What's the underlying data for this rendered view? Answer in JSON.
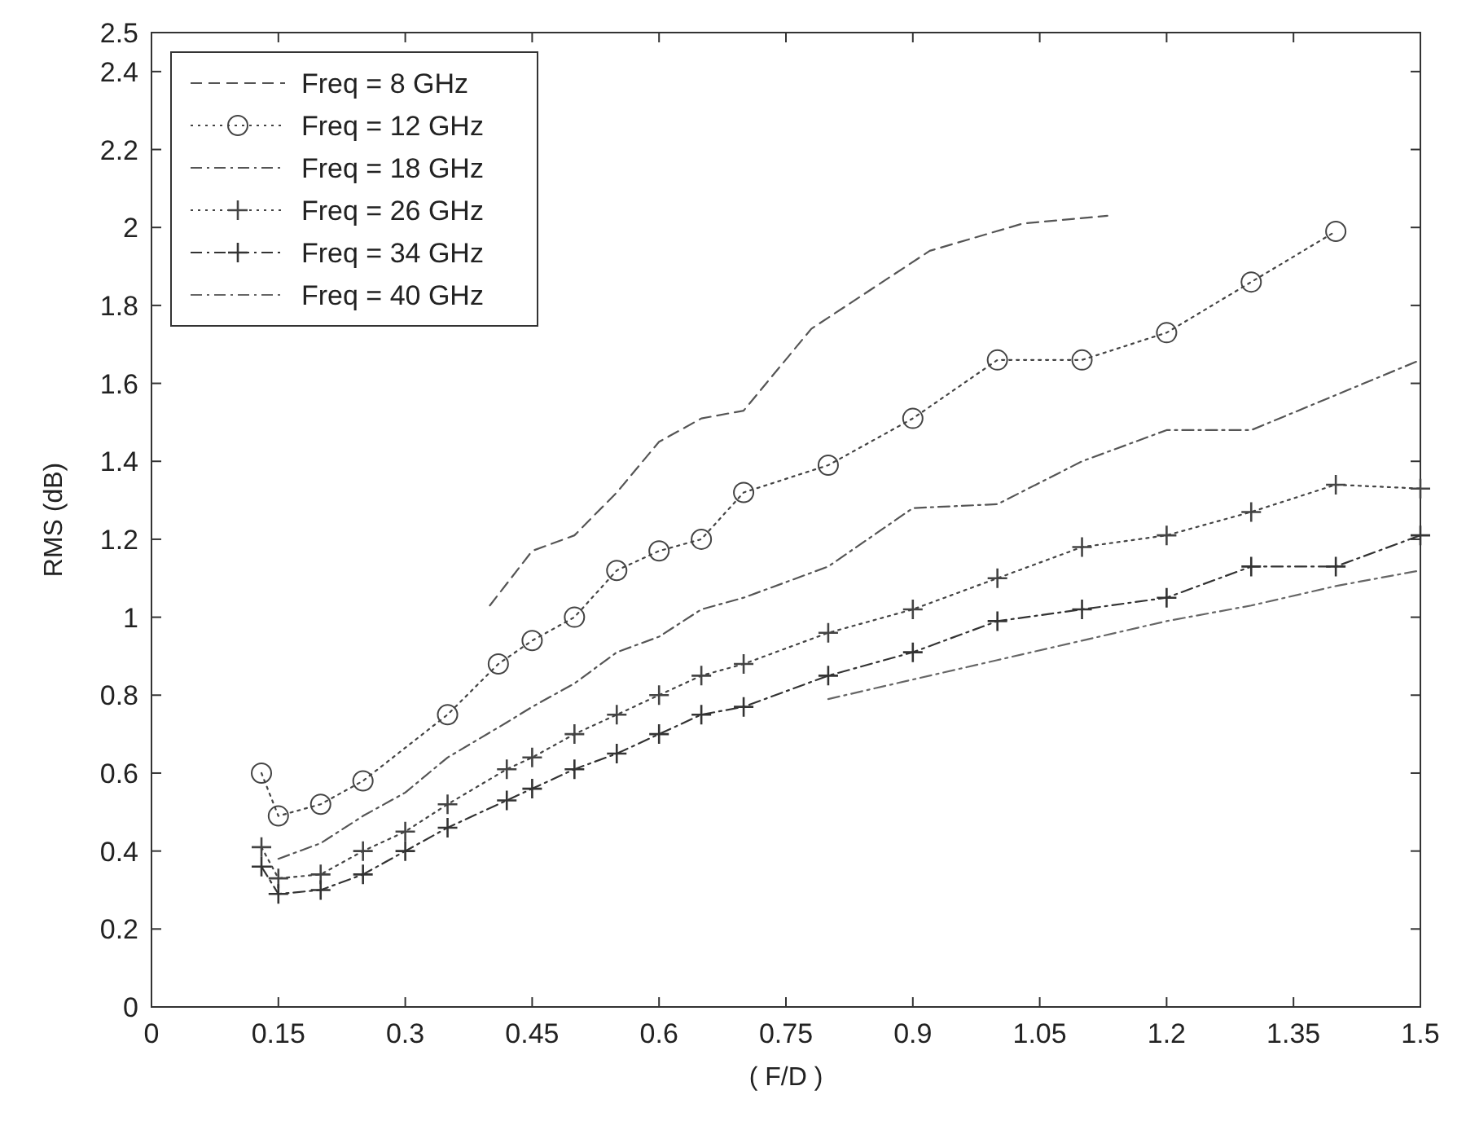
{
  "chart_data": {
    "type": "line",
    "xlabel": "( F/D )",
    "ylabel": "RMS (dB)",
    "xlim": [
      0,
      1.5
    ],
    "xticks": [
      0,
      0.15,
      0.3,
      0.45,
      0.6,
      0.75,
      0.9,
      1.05,
      1.2,
      1.35,
      1.5
    ],
    "ylim": [
      0,
      2.5
    ],
    "yticks": [
      0,
      0.2,
      0.4,
      0.6,
      0.8,
      1,
      1.2,
      1.4,
      1.6,
      1.8,
      2,
      2.2,
      2.4,
      2.5
    ],
    "grid": false,
    "legend": "top left",
    "series": [
      {
        "name": "Freq = 8 GHz",
        "color": "#555555",
        "line_style": "dashed",
        "marker": "none",
        "x": [
          0.4,
          0.45,
          0.5,
          0.55,
          0.6,
          0.65,
          0.7,
          0.78,
          0.92,
          1.03,
          1.13
        ],
        "values": [
          1.03,
          1.17,
          1.21,
          1.32,
          1.45,
          1.51,
          1.53,
          1.74,
          1.94,
          2.01,
          2.03
        ]
      },
      {
        "name": "Freq = 12 GHz",
        "color": "#444444",
        "line_style": "dotted",
        "marker": "circle",
        "x": [
          0.13,
          0.15,
          0.2,
          0.25,
          0.35,
          0.41,
          0.45,
          0.5,
          0.55,
          0.6,
          0.65,
          0.7,
          0.8,
          0.9,
          1.0,
          1.1,
          1.2,
          1.3,
          1.4
        ],
        "values": [
          0.6,
          0.49,
          0.52,
          0.58,
          0.75,
          0.88,
          0.94,
          1.0,
          1.12,
          1.17,
          1.2,
          1.32,
          1.39,
          1.51,
          1.66,
          1.66,
          1.73,
          1.86,
          1.99
        ]
      },
      {
        "name": "Freq = 18 GHz",
        "color": "#555555",
        "line_style": "dashdot",
        "marker": "none",
        "x": [
          0.15,
          0.2,
          0.25,
          0.3,
          0.35,
          0.42,
          0.45,
          0.5,
          0.55,
          0.6,
          0.65,
          0.7,
          0.8,
          0.9,
          1.0,
          1.1,
          1.2,
          1.3,
          1.4,
          1.5
        ],
        "values": [
          0.38,
          0.42,
          0.49,
          0.55,
          0.64,
          0.73,
          0.77,
          0.83,
          0.91,
          0.95,
          1.02,
          1.05,
          1.13,
          1.28,
          1.29,
          1.4,
          1.48,
          1.48,
          1.57,
          1.66
        ]
      },
      {
        "name": "Freq = 26 GHz",
        "color": "#444444",
        "line_style": "dotted",
        "marker": "cross",
        "x": [
          0.13,
          0.15,
          0.2,
          0.25,
          0.3,
          0.35,
          0.42,
          0.45,
          0.5,
          0.55,
          0.6,
          0.65,
          0.7,
          0.8,
          0.9,
          1.0,
          1.1,
          1.2,
          1.3,
          1.4,
          1.5
        ],
        "values": [
          0.41,
          0.33,
          0.34,
          0.4,
          0.45,
          0.52,
          0.61,
          0.64,
          0.7,
          0.75,
          0.8,
          0.85,
          0.88,
          0.96,
          1.02,
          1.1,
          1.18,
          1.21,
          1.27,
          1.34,
          1.33
        ]
      },
      {
        "name": "Freq = 34 GHz",
        "color": "#333333",
        "line_style": "dashdot",
        "marker": "cross",
        "x": [
          0.13,
          0.15,
          0.2,
          0.25,
          0.3,
          0.35,
          0.42,
          0.45,
          0.5,
          0.55,
          0.6,
          0.65,
          0.7,
          0.8,
          0.9,
          1.0,
          1.1,
          1.2,
          1.3,
          1.4,
          1.5
        ],
        "values": [
          0.36,
          0.29,
          0.3,
          0.34,
          0.4,
          0.46,
          0.53,
          0.56,
          0.61,
          0.65,
          0.7,
          0.75,
          0.77,
          0.85,
          0.91,
          0.99,
          1.02,
          1.05,
          1.13,
          1.13,
          1.21
        ]
      },
      {
        "name": "Freq = 40 GHz",
        "color": "#666666",
        "line_style": "dashdot",
        "marker": "none",
        "x": [
          0.8,
          0.9,
          1.0,
          1.1,
          1.2,
          1.3,
          1.4,
          1.5
        ],
        "values": [
          0.79,
          0.84,
          0.89,
          0.94,
          0.99,
          1.03,
          1.08,
          1.12
        ]
      }
    ]
  }
}
